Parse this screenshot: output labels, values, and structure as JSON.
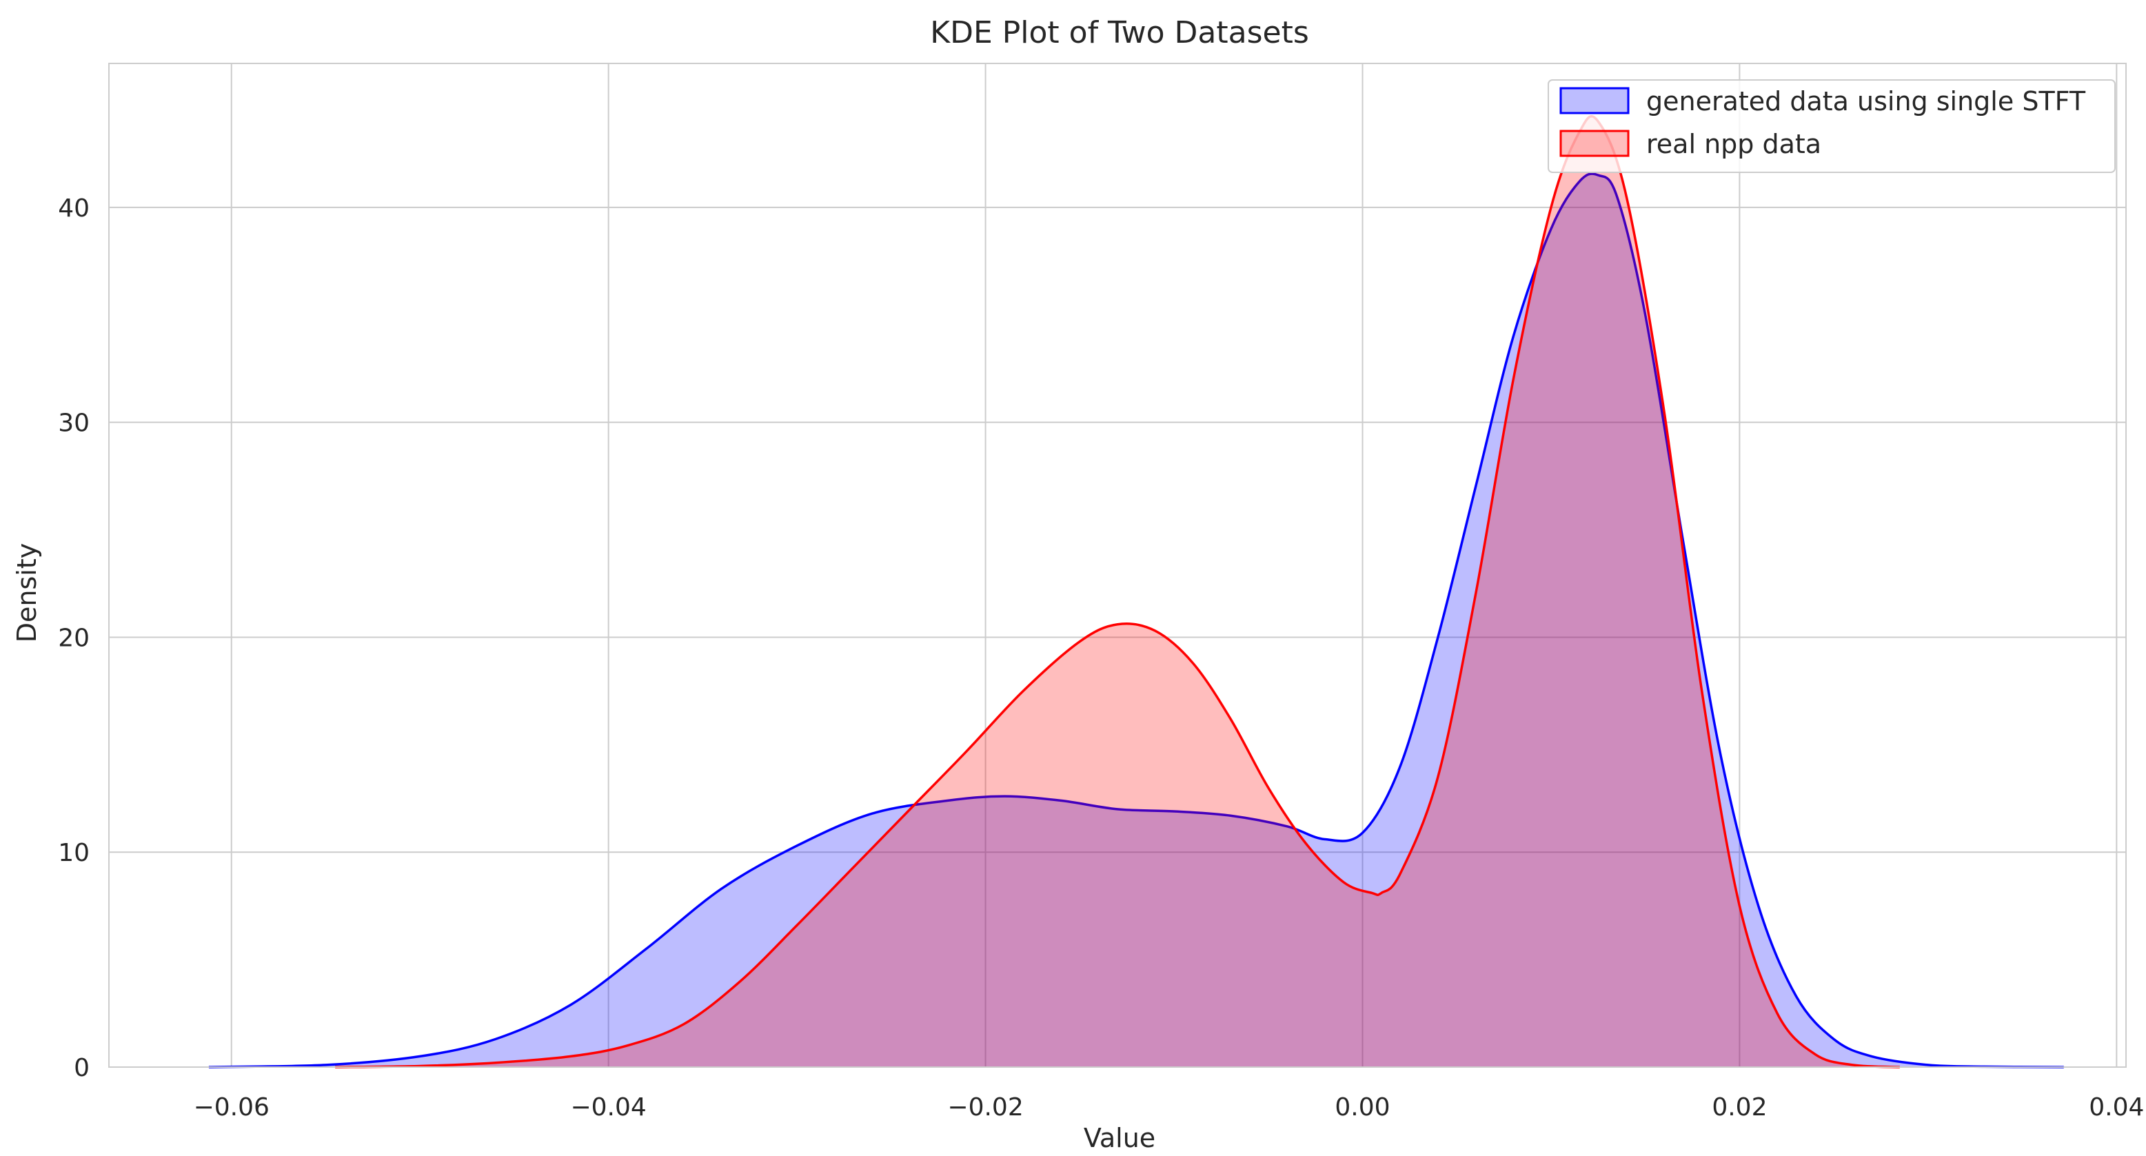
{
  "chart_data": {
    "type": "area",
    "title": "KDE Plot of Two Datasets",
    "xlabel": "Value",
    "ylabel": "Density",
    "xlim": [
      -0.0665,
      0.0405
    ],
    "ylim": [
      0,
      46.7
    ],
    "xticks": [
      -0.06,
      -0.04,
      -0.02,
      0.0,
      0.02,
      0.04
    ],
    "xtick_labels": [
      "−0.06",
      "−0.04",
      "−0.02",
      "0.00",
      "0.02",
      "0.04"
    ],
    "yticks": [
      0,
      10,
      20,
      30,
      40
    ],
    "ytick_labels": [
      "0",
      "10",
      "20",
      "30",
      "40"
    ],
    "grid": true,
    "legend_position": "top-right",
    "series": [
      {
        "name": "generated data using single STFT",
        "line_color": "#0000ff",
        "fill_color": "#0000ff",
        "fill_opacity": 0.26,
        "x": [
          -0.0612,
          -0.055,
          -0.05,
          -0.046,
          -0.042,
          -0.038,
          -0.034,
          -0.03,
          -0.026,
          -0.022,
          -0.019,
          -0.016,
          -0.013,
          -0.01,
          -0.007,
          -0.004,
          -0.002,
          0.0,
          0.002,
          0.004,
          0.006,
          0.008,
          0.01,
          0.0115,
          0.0125,
          0.0135,
          0.015,
          0.017,
          0.019,
          0.021,
          0.023,
          0.025,
          0.027,
          0.03,
          0.033,
          0.0372
        ],
        "values": [
          0.0,
          0.1,
          0.5,
          1.3,
          2.9,
          5.5,
          8.3,
          10.3,
          11.8,
          12.4,
          12.6,
          12.4,
          12.0,
          11.9,
          11.7,
          11.2,
          10.6,
          10.9,
          14.0,
          20.0,
          27.0,
          34.0,
          39.0,
          41.2,
          41.5,
          40.5,
          35.0,
          24.5,
          14.5,
          7.5,
          3.3,
          1.3,
          0.5,
          0.1,
          0.02,
          0.0
        ]
      },
      {
        "name": "real npp data",
        "line_color": "#ff0000",
        "fill_color": "#ff0000",
        "fill_opacity": 0.26,
        "x": [
          -0.0545,
          -0.05,
          -0.046,
          -0.042,
          -0.039,
          -0.036,
          -0.033,
          -0.03,
          -0.027,
          -0.024,
          -0.021,
          -0.018,
          -0.015,
          -0.013,
          -0.011,
          -0.009,
          -0.007,
          -0.005,
          -0.003,
          -0.001,
          0.0005,
          0.001,
          0.002,
          0.004,
          0.006,
          0.008,
          0.01,
          0.0115,
          0.0125,
          0.014,
          0.016,
          0.018,
          0.02,
          0.022,
          0.024,
          0.026,
          0.0285
        ],
        "values": [
          0.0,
          0.05,
          0.2,
          0.5,
          1.0,
          2.0,
          4.0,
          6.6,
          9.3,
          12.0,
          14.7,
          17.5,
          19.8,
          20.6,
          20.3,
          18.8,
          16.2,
          13.0,
          10.4,
          8.6,
          8.1,
          8.1,
          9.0,
          13.5,
          22.0,
          32.0,
          40.0,
          43.5,
          44.0,
          40.5,
          30.5,
          17.5,
          7.5,
          2.5,
          0.6,
          0.1,
          0.0
        ]
      }
    ]
  }
}
